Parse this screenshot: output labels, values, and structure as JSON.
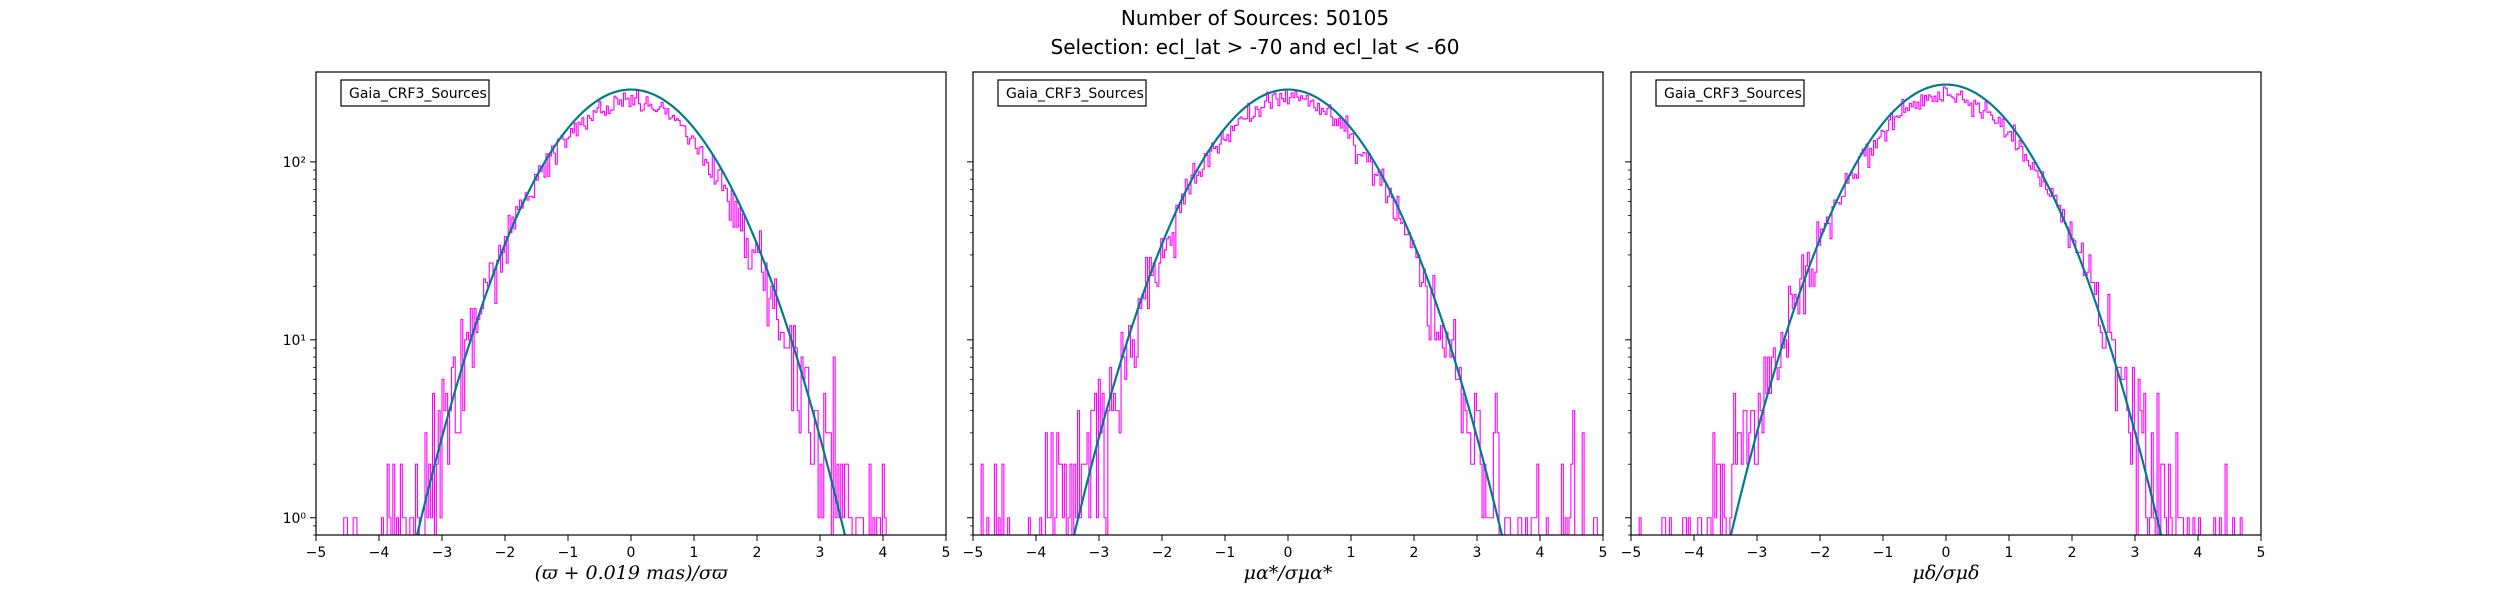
{
  "figure": {
    "suptitle_line1": "Number of Sources: 50105",
    "suptitle_line2": "Selection: ecl_lat > -70 and ecl_lat < -60"
  },
  "colors": {
    "histogram": "#ff00ff",
    "gaussian": "#007b8a",
    "axes": "#000000"
  },
  "chart_data": [
    {
      "type": "line",
      "y_scale": "log",
      "xlim": [
        -5,
        5
      ],
      "ylim": [
        0.8,
        320
      ],
      "x_ticks": [
        -5,
        -4,
        -3,
        -2,
        -1,
        0,
        1,
        2,
        3,
        4,
        5
      ],
      "y_ticks": [
        1,
        10,
        100
      ],
      "y_tick_labels": [
        "10⁰",
        "10¹",
        "10²"
      ],
      "xlabel": "(ϖ + 0.019 mas)/σϖ",
      "legend": "Gaia_CRF3_Sources",
      "legend_position": "top-left",
      "grid": false,
      "series": [
        {
          "kind": "step-histogram",
          "bin_width": 0.03,
          "amplitude": 220,
          "center": -0.03,
          "sigma": 1.0,
          "x_min": -4.8,
          "x_max": 4.55
        },
        {
          "kind": "gaussian-fit",
          "amplitude": 255,
          "center": 0.0,
          "sigma": 1.0
        }
      ]
    },
    {
      "type": "line",
      "y_scale": "log",
      "xlim": [
        -5,
        5
      ],
      "ylim": [
        0.8,
        320
      ],
      "x_ticks": [
        -5,
        -4,
        -3,
        -2,
        -1,
        0,
        1,
        2,
        3,
        4,
        5
      ],
      "y_ticks": [
        1,
        10,
        100
      ],
      "y_tick_labels": [
        "10⁰",
        "10¹",
        "10²"
      ],
      "xlabel": "μα*/σμα*",
      "legend": "Gaia_CRF3_Sources",
      "legend_position": "top-left",
      "grid": false,
      "series": [
        {
          "kind": "step-histogram",
          "bin_width": 0.03,
          "amplitude": 230,
          "center": 0.0,
          "sigma": 1.0,
          "x_min": -4.9,
          "x_max": 4.95
        },
        {
          "kind": "gaussian-fit",
          "amplitude": 255,
          "center": 0.0,
          "sigma": 1.0
        }
      ]
    },
    {
      "type": "line",
      "y_scale": "log",
      "xlim": [
        -5,
        5
      ],
      "ylim": [
        0.8,
        320
      ],
      "x_ticks": [
        -5,
        -4,
        -3,
        -2,
        -1,
        0,
        1,
        2,
        3,
        4,
        5
      ],
      "y_ticks": [
        1,
        10,
        100
      ],
      "y_tick_labels": [
        "10⁰",
        "10¹",
        "10²"
      ],
      "xlabel": "μδ/σμδ",
      "legend": "Gaia_CRF3_Sources",
      "legend_position": "top-left",
      "grid": false,
      "series": [
        {
          "kind": "step-histogram",
          "bin_width": 0.03,
          "amplitude": 232,
          "center": 0.0,
          "sigma": 1.03,
          "x_min": -4.9,
          "x_max": 4.9
        },
        {
          "kind": "gaussian-fit",
          "amplitude": 272,
          "center": 0.0,
          "sigma": 1.0
        }
      ]
    }
  ]
}
